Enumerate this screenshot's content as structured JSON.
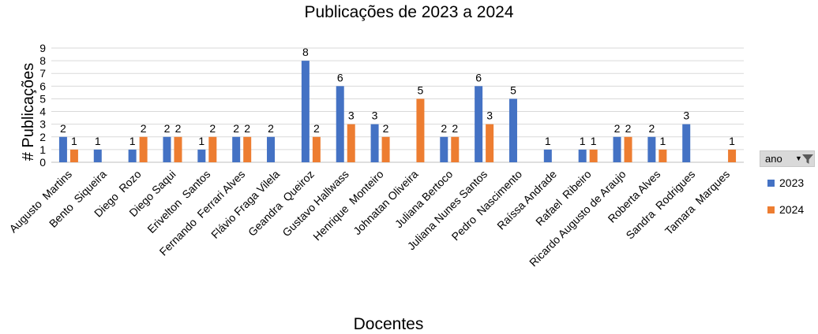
{
  "chart_data": {
    "type": "bar",
    "title": "Publicações de 2023 a 2024",
    "xlabel": "Docentes",
    "ylabel": "# Publicações",
    "ylim": [
      0,
      9
    ],
    "yticks": [
      0,
      1,
      2,
      3,
      4,
      5,
      6,
      7,
      8,
      9
    ],
    "grid": true,
    "legend_position": "right",
    "categories": [
      "Augusto  Martins",
      "Bento  Siqueira",
      "Diego  Rozo",
      "Diego Saqui",
      "Erivelton  Santos",
      "Fernando  Ferrari Alves",
      "Flávio Fraga Vilela",
      "Geandra  Queiroz",
      "Gustavo Hallwass",
      "Henrique  Monteiro",
      "Johnatan Oliveira",
      "Juliana Bertoco",
      "Juliana Nunes Santos",
      "Pedro  Nascimento",
      "Raíssa Andrade",
      "Rafael  Ribeiro",
      "Ricardo Augusto de Araujo",
      "Roberta Alves",
      "Sandra  Rodrigues",
      "Tamara  Marques"
    ],
    "series": [
      {
        "name": "2023",
        "color": "#4472c4",
        "values": [
          2,
          1,
          1,
          2,
          1,
          2,
          2,
          8,
          6,
          3,
          null,
          2,
          6,
          5,
          1,
          1,
          2,
          2,
          3,
          null
        ]
      },
      {
        "name": "2024",
        "color": "#ed7d31",
        "values": [
          1,
          null,
          2,
          2,
          2,
          2,
          null,
          2,
          3,
          2,
          5,
          2,
          3,
          null,
          null,
          1,
          2,
          1,
          null,
          1
        ]
      }
    ]
  },
  "filter": {
    "label": "ano",
    "arrow_icon": "dropdown-arrow-icon",
    "icon": "funnel-filter-icon"
  }
}
